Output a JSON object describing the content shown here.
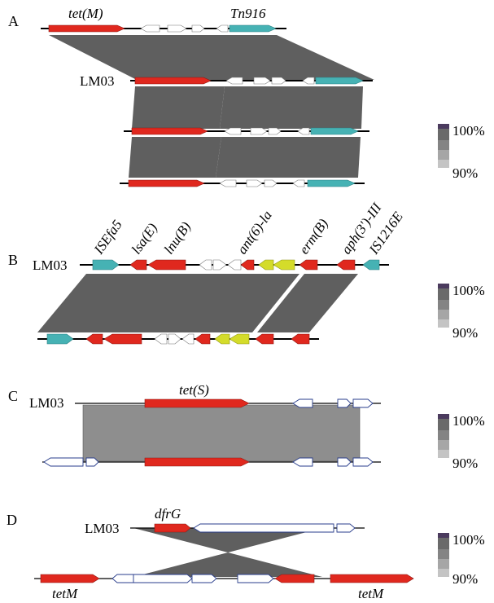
{
  "colors": {
    "resistance_gene": "#e0281e",
    "mobile_element": "#46b2b4",
    "other_resistance": "#d4dc2a",
    "hypothetical": "#ffffff",
    "identity_band": "#5f5f5f",
    "identity_band_c": "#8e8e8e",
    "legend_steps": [
      "#4b3b5e",
      "#6a6a6a",
      "#848484",
      "#a6a6a6",
      "#c4c4c4"
    ]
  },
  "panels": {
    "A": {
      "letter": "A",
      "gene_labels": [
        "tet(M)",
        "Tn916"
      ],
      "seq_label": "LM03",
      "legend": {
        "max": "100%",
        "min": "90%"
      }
    },
    "B": {
      "letter": "B",
      "gene_labels": [
        "ISEfa5",
        "lsa(E)",
        "lnu(B)",
        "ant(6)-la",
        "erm(B)",
        "aph(3')-III",
        "IS1216E"
      ],
      "seq_label": "LM03",
      "legend": {
        "max": "100%",
        "min": "90%"
      }
    },
    "C": {
      "letter": "C",
      "gene_labels": [
        "tet(S)"
      ],
      "seq_label": "LM03",
      "legend": {
        "max": "100%",
        "min": "90%"
      }
    },
    "D": {
      "letter": "D",
      "gene_labels": [
        "dfrG",
        "tetM",
        "tetM"
      ],
      "seq_label": "LM03",
      "legend": {
        "max": "100%",
        "min": "90%"
      }
    }
  }
}
